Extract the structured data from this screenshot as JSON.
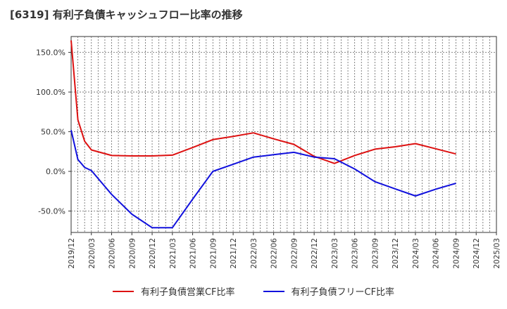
{
  "title": "[6319]  有利子負債キャッシュフロー比率の推移",
  "chart_data": {
    "type": "line",
    "title": "[6319]  有利子負債キャッシュフロー比率の推移",
    "xlabel": "",
    "ylabel": "",
    "x": [
      "2019/12",
      "2020/03",
      "2020/06",
      "2020/09",
      "2020/12",
      "2021/03",
      "2021/06",
      "2021/09",
      "2021/12",
      "2022/03",
      "2022/06",
      "2022/09",
      "2022/12",
      "2023/03",
      "2023/06",
      "2023/09",
      "2023/12",
      "2024/03",
      "2024/06",
      "2024/09",
      "2024/12",
      "2025/03"
    ],
    "ylim": [
      -77,
      170
    ],
    "yticks": [
      150,
      100,
      50,
      0,
      -50
    ],
    "ytick_labels": [
      "150.0%",
      "100.0%",
      "50.0%",
      "0.0%",
      "-50.0%"
    ],
    "grid": true,
    "legend_position": "bottom",
    "series": [
      {
        "name": "有利子負債営業CF比率",
        "color": "#dd1111",
        "points": [
          [
            "2019/12",
            165
          ],
          [
            "2019/12+1",
            65
          ],
          [
            "2019/12+2",
            38
          ],
          [
            "2020/03",
            27
          ],
          [
            "2020/06",
            20
          ],
          [
            "2020/09",
            19.5
          ],
          [
            "2020/12",
            19.5
          ],
          [
            "2021/03",
            20.5
          ],
          [
            "2021/06",
            30
          ],
          [
            "2021/09",
            40
          ],
          [
            "2021/12",
            44
          ],
          [
            "2022/03",
            48.5
          ],
          [
            "2022/06",
            41
          ],
          [
            "2022/09",
            34
          ],
          [
            "2022/12",
            19
          ],
          [
            "2023/03",
            10
          ],
          [
            "2023/06",
            20
          ],
          [
            "2023/09",
            28
          ],
          [
            "2023/12",
            31
          ],
          [
            "2024/03",
            35
          ],
          [
            "2024/06",
            28.5
          ],
          [
            "2024/09",
            22
          ]
        ]
      },
      {
        "name": "有利子負債フリーCF比率",
        "color": "#1111dd",
        "points": [
          [
            "2019/12",
            52
          ],
          [
            "2019/12+1",
            15
          ],
          [
            "2019/12+2",
            5
          ],
          [
            "2020/03",
            1
          ],
          [
            "2020/06",
            -29
          ],
          [
            "2020/09",
            -54
          ],
          [
            "2020/12",
            -71
          ],
          [
            "2021/03",
            -71
          ],
          [
            "2021/06",
            -35
          ],
          [
            "2021/09",
            0
          ],
          [
            "2021/12",
            9
          ],
          [
            "2022/03",
            18
          ],
          [
            "2022/06",
            21
          ],
          [
            "2022/09",
            24
          ],
          [
            "2022/12",
            18
          ],
          [
            "2023/03",
            16
          ],
          [
            "2023/06",
            3
          ],
          [
            "2023/09",
            -13
          ],
          [
            "2023/12",
            -22
          ],
          [
            "2024/03",
            -31
          ],
          [
            "2024/06",
            -22.5
          ],
          [
            "2024/09",
            -15
          ]
        ]
      }
    ]
  }
}
